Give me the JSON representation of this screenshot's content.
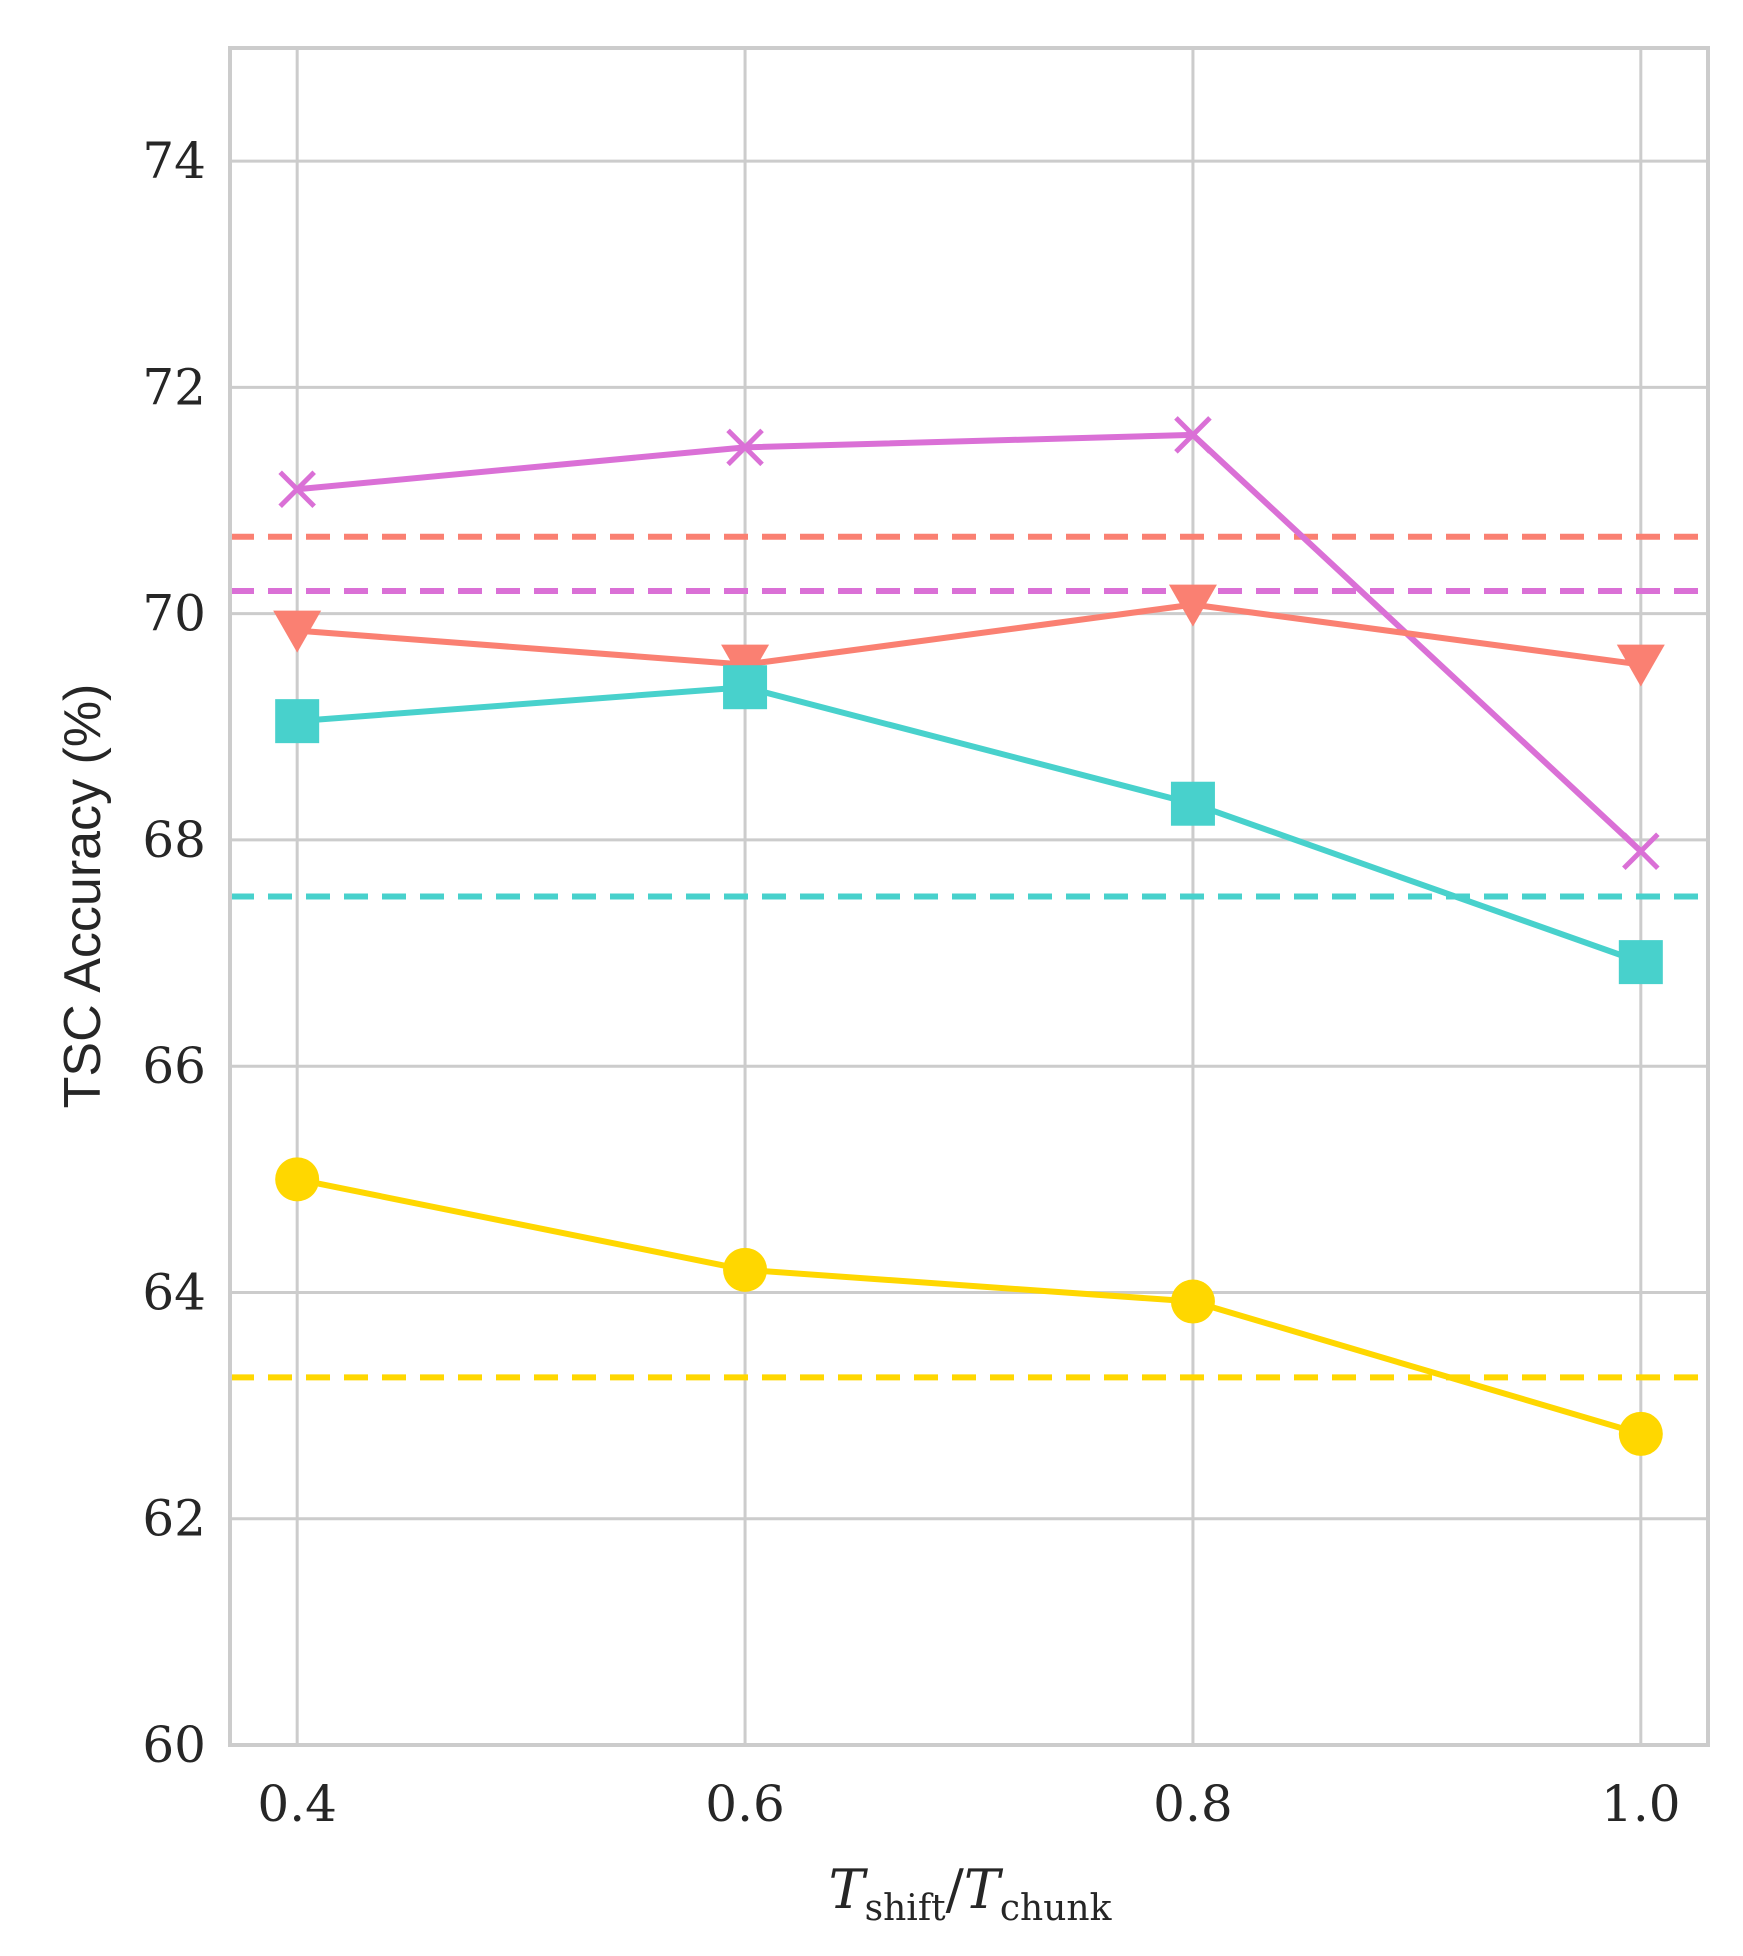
{
  "chart_data": {
    "type": "line",
    "title": "",
    "xlabel_main": "T",
    "xlabel_sub1": "shift",
    "xlabel_slash": "/",
    "xlabel_sub2": "chunk",
    "ylabel": "TSC Accuracy (%)",
    "x": [
      0.4,
      0.6,
      0.8,
      1.0
    ],
    "xticks": [
      "0.4",
      "0.6",
      "0.8",
      "1.0"
    ],
    "xlim": [
      0.37,
      1.03
    ],
    "ylim": [
      60,
      75
    ],
    "yticks": [
      "60",
      "62",
      "64",
      "66",
      "68",
      "70",
      "72",
      "74"
    ],
    "grid": true,
    "series": [
      {
        "name": "magenta",
        "color": "#DA70D6",
        "marker": "x",
        "values": [
          71.1,
          71.47,
          71.58,
          67.9
        ],
        "baseline": 70.2
      },
      {
        "name": "salmon",
        "color": "#FA8072",
        "marker": "triangle-down",
        "values": [
          69.85,
          69.55,
          70.08,
          69.55
        ],
        "baseline": 70.68
      },
      {
        "name": "turquoise",
        "color": "#48D1CC",
        "marker": "square",
        "values": [
          69.05,
          69.35,
          68.32,
          66.92
        ],
        "baseline": 67.5
      },
      {
        "name": "gold",
        "color": "#FFD700",
        "marker": "circle",
        "values": [
          65.0,
          64.2,
          63.92,
          62.75
        ],
        "baseline": 63.25
      }
    ]
  }
}
